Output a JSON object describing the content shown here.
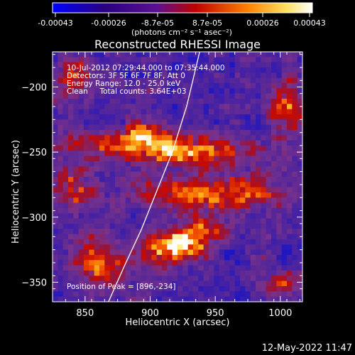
{
  "chart_data": {
    "type": "heatmap",
    "title": "Reconstructed RHESSI Image",
    "xlabel": "Heliocentric X (arcsec)",
    "ylabel": "Heliocentric Y (arcsec)",
    "xlim": [
      825,
      1017
    ],
    "ylim": [
      -365,
      -173
    ],
    "xticks": [
      850,
      900,
      950,
      1000
    ],
    "yticks": [
      -200,
      -250,
      -300,
      -350
    ],
    "colorbar": {
      "ticks": [
        "-0.00043",
        "-0.00026",
        "-8.7e-05",
        "8.7e-05",
        "0.00026",
        "0.00043"
      ],
      "unit_label": "(photons cm⁻² s⁻¹ asec⁻²)",
      "range": [
        -0.00043,
        0.00043
      ]
    },
    "annotations": [
      "10-Jul-2012 07:29:44.000 to 07:35:44.000",
      "Detectors: 3F 5F 6F 7F 8F, Att 0",
      "Energy Range: 12.0 - 25.0 keV",
      "Clean     Total counts: 3.64E+03"
    ],
    "peak_label": "Position of Peak = [896,-234]",
    "peak": [
      896,
      -234
    ],
    "limb_curve": [
      [
        868,
        -365
      ],
      [
        880,
        -338
      ],
      [
        893,
        -310
      ],
      [
        905,
        -280
      ],
      [
        917,
        -250
      ],
      [
        928,
        -215
      ],
      [
        938,
        -173
      ]
    ],
    "blobs": [
      {
        "x": 910,
        "y": -247,
        "sx": 50,
        "sy": 9,
        "rot": -3,
        "amp": 0.62
      },
      {
        "x": 948,
        "y": -282,
        "sx": 42,
        "sy": 9,
        "rot": 0,
        "amp": 0.55
      },
      {
        "x": 925,
        "y": -320,
        "sx": 22,
        "sy": 9,
        "rot": 18,
        "amp": 0.8
      },
      {
        "x": 895,
        "y": -232,
        "sx": 10,
        "sy": 6,
        "rot": 0,
        "amp": 0.35
      },
      {
        "x": 840,
        "y": -193,
        "sx": 10,
        "sy": 12,
        "rot": 0,
        "amp": 0.45
      },
      {
        "x": 843,
        "y": -275,
        "sx": 12,
        "sy": 12,
        "rot": 0,
        "amp": 0.42
      },
      {
        "x": 860,
        "y": -335,
        "sx": 14,
        "sy": 14,
        "rot": 0,
        "amp": 0.45
      },
      {
        "x": 1005,
        "y": -215,
        "sx": 9,
        "sy": 18,
        "rot": 0,
        "amp": 0.4
      },
      {
        "x": 1002,
        "y": -350,
        "sx": 10,
        "sy": 9,
        "rot": 0,
        "amp": 0.35
      }
    ]
  },
  "footer": {
    "timestamp": "12-May-2022 11:47"
  }
}
